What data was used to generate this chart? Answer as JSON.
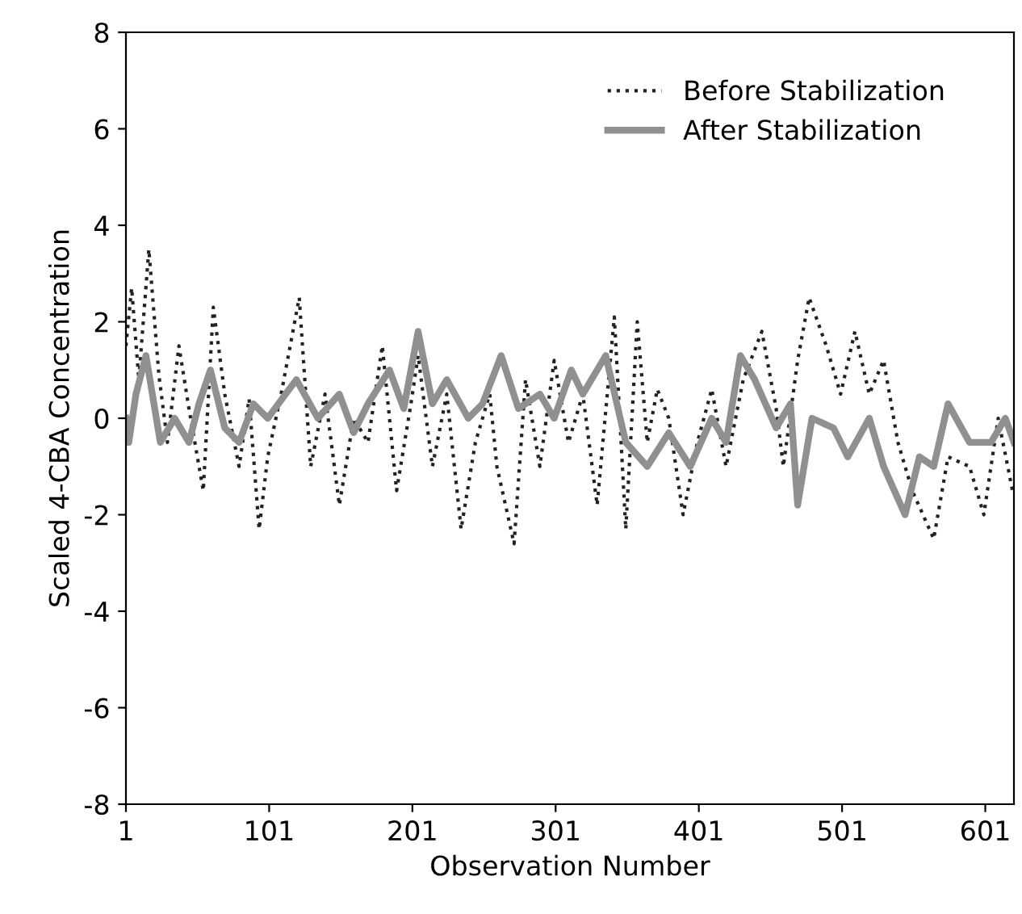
{
  "chart_data": {
    "type": "line",
    "xlabel": "Observation Number",
    "ylabel": "Scaled 4-CBA Concentration",
    "xlim": [
      1,
      621
    ],
    "xticks": [
      1,
      101,
      201,
      301,
      401,
      501,
      601
    ],
    "ylim": [
      -8,
      8
    ],
    "yticks": [
      -8,
      -6,
      -4,
      -2,
      0,
      2,
      4,
      6,
      8
    ],
    "grid": false,
    "legend": "top right",
    "marker": "none",
    "series": [
      {
        "name": "Before Stabilization",
        "color": "#222222",
        "line_style": "dotted",
        "x": [
          1,
          5,
          10,
          17,
          24,
          30,
          38,
          45,
          55,
          62,
          70,
          80,
          87,
          94,
          100,
          110,
          122,
          130,
          140,
          150,
          160,
          170,
          180,
          190,
          200,
          205,
          215,
          225,
          235,
          245,
          255,
          260,
          272,
          280,
          290,
          300,
          310,
          320,
          330,
          342,
          350,
          358,
          365,
          372,
          380,
          390,
          400,
          410,
          420,
          432,
          445,
          455,
          460,
          470,
          478,
          490,
          500,
          510,
          520,
          530,
          540,
          550,
          565,
          575,
          590,
          600,
          610,
          620
        ],
        "values": [
          1.5,
          2.7,
          0.8,
          3.5,
          0.9,
          -0.5,
          1.5,
          0.2,
          -1.5,
          2.3,
          0.5,
          -1.0,
          0.4,
          -2.3,
          -0.8,
          0.6,
          2.5,
          -1.0,
          0.5,
          -1.8,
          0.0,
          -0.5,
          1.5,
          -1.5,
          0.3,
          1.3,
          -1.0,
          0.5,
          -2.3,
          -0.5,
          0.5,
          -1.0,
          -2.6,
          0.8,
          -1.0,
          1.2,
          -0.5,
          0.5,
          -1.8,
          2.1,
          -2.3,
          2.0,
          -0.5,
          0.6,
          0.0,
          -2.0,
          -0.5,
          0.6,
          -1.0,
          0.8,
          1.8,
          0.2,
          -1.0,
          1.2,
          2.5,
          1.5,
          0.5,
          1.8,
          0.5,
          1.2,
          -0.5,
          -1.5,
          -2.5,
          -0.8,
          -1.0,
          -2.0,
          0.0,
          -1.5
        ]
      },
      {
        "name": "After Stabilization",
        "color": "#909090",
        "line_style": "solid",
        "x": [
          1,
          3,
          8,
          15,
          25,
          35,
          45,
          52,
          60,
          70,
          80,
          90,
          100,
          110,
          120,
          135,
          150,
          160,
          170,
          185,
          195,
          205,
          215,
          225,
          240,
          250,
          263,
          275,
          290,
          300,
          312,
          320,
          336,
          350,
          365,
          380,
          395,
          410,
          420,
          430,
          440,
          455,
          465,
          470,
          480,
          495,
          505,
          520,
          530,
          545,
          555,
          565,
          575,
          590,
          605,
          615,
          621
        ],
        "values": [
          0.0,
          -0.5,
          0.5,
          1.3,
          -0.5,
          0.0,
          -0.5,
          0.3,
          1.0,
          -0.2,
          -0.5,
          0.3,
          0.0,
          0.4,
          0.8,
          0.0,
          0.5,
          -0.3,
          0.3,
          1.0,
          0.2,
          1.8,
          0.3,
          0.8,
          0.0,
          0.3,
          1.3,
          0.2,
          0.5,
          0.0,
          1.0,
          0.5,
          1.3,
          -0.5,
          -1.0,
          -0.3,
          -1.0,
          0.0,
          -0.5,
          1.3,
          0.8,
          -0.2,
          0.3,
          -1.8,
          0.0,
          -0.2,
          -0.8,
          0.0,
          -1.0,
          -2.0,
          -0.8,
          -1.0,
          0.3,
          -0.5,
          -0.5,
          0.0,
          -0.5
        ]
      }
    ]
  }
}
